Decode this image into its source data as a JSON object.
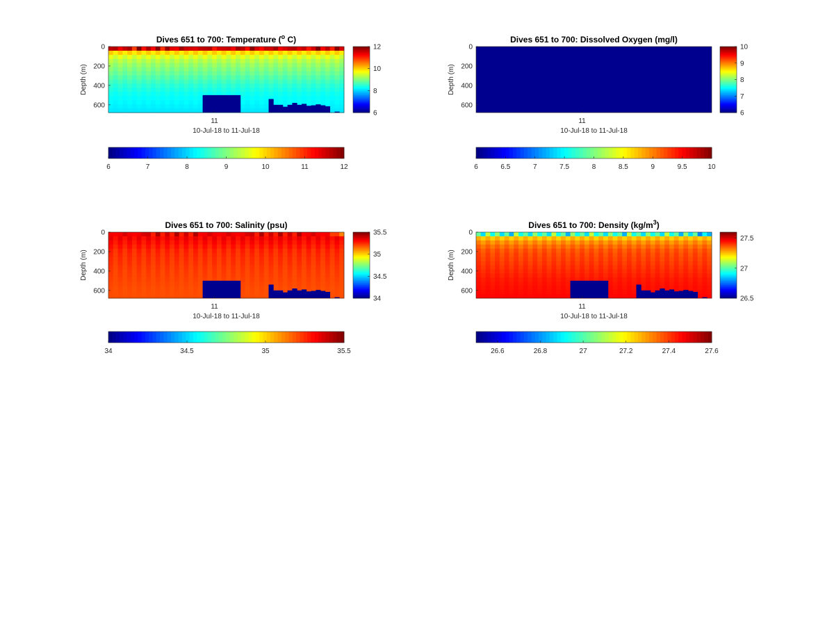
{
  "figure": {
    "background": "#ffffff"
  },
  "chart_data": [
    {
      "type": "heatmap",
      "variable": "temperature",
      "title": "Dives 651 to 700: Temperature (",
      "title_sup": "o",
      "title_suffix": " C)",
      "ylabel": "Depth (m)",
      "xlabel": "10-Jul-18 to 11-Jul-18",
      "xtick_labels": [
        "11"
      ],
      "yticks": [
        0,
        200,
        400,
        600
      ],
      "ylim": [
        0,
        680
      ],
      "y_direction": "down",
      "colormap": "jet",
      "clim": [
        6,
        12
      ],
      "side_colorbar_ticks": [
        6,
        8,
        10,
        12
      ],
      "bottom_colorbar_ticks": [
        6,
        7,
        8,
        9,
        10,
        11,
        12
      ],
      "dives": 50,
      "surface_values": [
        11.5,
        11.8,
        11.2,
        11.7,
        11.6,
        11.0,
        11.9,
        11.3,
        11.6,
        11.4,
        11.8,
        11.1,
        11.7,
        11.5,
        11.2,
        11.9,
        11.4,
        11.6,
        11.3,
        11.7,
        11.5,
        11.8,
        11.0,
        11.6,
        11.4,
        11.7,
        11.2,
        11.9,
        11.5,
        11.3,
        11.8,
        11.6,
        11.1,
        11.7,
        11.4,
        11.9,
        11.2,
        11.6,
        11.5,
        11.8,
        11.3,
        11.7,
        11.0,
        11.6,
        11.9,
        11.4,
        11.5,
        11.2,
        11.8,
        11.6
      ],
      "depth_profile": [
        [
          0,
          11.5
        ],
        [
          60,
          10.0
        ],
        [
          120,
          9.4
        ],
        [
          200,
          9.1
        ],
        [
          300,
          8.8
        ],
        [
          400,
          8.5
        ],
        [
          500,
          8.3
        ],
        [
          600,
          8.2
        ],
        [
          680,
          8.1
        ]
      ],
      "no_data": [
        {
          "x1": 0.4,
          "x2": 0.56,
          "depth": 500
        },
        {
          "x1": 0.68,
          "x2": 0.7,
          "depth": 540
        },
        {
          "x1": 0.7,
          "x2": 0.74,
          "depth": 600
        },
        {
          "x1": 0.74,
          "x2": 0.76,
          "depth": 620
        },
        {
          "x1": 0.76,
          "x2": 0.78,
          "depth": 600
        },
        {
          "x1": 0.78,
          "x2": 0.8,
          "depth": 580
        },
        {
          "x1": 0.8,
          "x2": 0.82,
          "depth": 600
        },
        {
          "x1": 0.82,
          "x2": 0.84,
          "depth": 590
        },
        {
          "x1": 0.84,
          "x2": 0.86,
          "depth": 610
        },
        {
          "x1": 0.86,
          "x2": 0.88,
          "depth": 605
        },
        {
          "x1": 0.88,
          "x2": 0.9,
          "depth": 595
        },
        {
          "x1": 0.9,
          "x2": 0.92,
          "depth": 605
        },
        {
          "x1": 0.92,
          "x2": 0.94,
          "depth": 615
        },
        {
          "x1": 0.96,
          "x2": 0.98,
          "depth": 670
        }
      ],
      "no_data_color": "#00008f"
    },
    {
      "type": "heatmap",
      "variable": "dissolved_oxygen",
      "title": "Dives 651 to 700: Dissolved Oxygen (mg/l)",
      "title_sup": "",
      "title_suffix": "",
      "ylabel": "Depth (m)",
      "xlabel": "10-Jul-18 to 11-Jul-18",
      "xtick_labels": [
        "11"
      ],
      "yticks": [
        0,
        200,
        400,
        600
      ],
      "ylim": [
        0,
        680
      ],
      "y_direction": "down",
      "colormap": "jet",
      "clim": [
        6,
        10
      ],
      "side_colorbar_ticks": [
        6,
        7,
        8,
        9,
        10
      ],
      "bottom_colorbar_ticks": [
        6,
        6.5,
        7,
        7.5,
        8,
        8.5,
        9,
        9.5,
        10
      ],
      "dives": 50,
      "uniform_fill": "#00008f",
      "no_data": []
    },
    {
      "type": "heatmap",
      "variable": "salinity",
      "title": "Dives 651 to 700: Salinity (psu)",
      "title_sup": "",
      "title_suffix": "",
      "ylabel": "Depth (m)",
      "xlabel": "10-Jul-18 to 11-Jul-18",
      "xtick_labels": [
        "11"
      ],
      "yticks": [
        0,
        200,
        400,
        600
      ],
      "ylim": [
        0,
        680
      ],
      "y_direction": "down",
      "colormap": "jet",
      "clim": [
        34,
        35.5
      ],
      "side_colorbar_ticks": [
        34,
        34.5,
        35,
        35.5
      ],
      "bottom_colorbar_ticks": [
        34,
        34.5,
        35,
        35.5
      ],
      "dives": 50,
      "surface_values": [
        35.3,
        35.35,
        35.3,
        35.4,
        35.3,
        35.35,
        35.3,
        35.4,
        35.35,
        35.3,
        35.4,
        35.3,
        35.35,
        35.3,
        35.4,
        35.3,
        35.35,
        35.3,
        35.4,
        35.35,
        35.3,
        35.4,
        35.3,
        35.35,
        35.3,
        35.4,
        35.3,
        35.35,
        35.3,
        35.4,
        35.35,
        35.3,
        35.4,
        35.3,
        35.35,
        35.3,
        35.4,
        35.3,
        35.35,
        35.3,
        35.4,
        35.35,
        35.3,
        35.4,
        35.3,
        35.35,
        35.3,
        35.25,
        35.2,
        35.15
      ],
      "depth_profile": [
        [
          0,
          35.35
        ],
        [
          100,
          35.3
        ],
        [
          200,
          35.25
        ],
        [
          400,
          35.22
        ],
        [
          600,
          35.2
        ],
        [
          680,
          35.2
        ]
      ],
      "no_data": [
        {
          "x1": 0.4,
          "x2": 0.56,
          "depth": 500
        },
        {
          "x1": 0.68,
          "x2": 0.7,
          "depth": 540
        },
        {
          "x1": 0.7,
          "x2": 0.74,
          "depth": 600
        },
        {
          "x1": 0.74,
          "x2": 0.76,
          "depth": 620
        },
        {
          "x1": 0.76,
          "x2": 0.78,
          "depth": 600
        },
        {
          "x1": 0.78,
          "x2": 0.8,
          "depth": 580
        },
        {
          "x1": 0.8,
          "x2": 0.82,
          "depth": 600
        },
        {
          "x1": 0.82,
          "x2": 0.84,
          "depth": 590
        },
        {
          "x1": 0.84,
          "x2": 0.86,
          "depth": 610
        },
        {
          "x1": 0.86,
          "x2": 0.88,
          "depth": 605
        },
        {
          "x1": 0.88,
          "x2": 0.9,
          "depth": 595
        },
        {
          "x1": 0.9,
          "x2": 0.92,
          "depth": 605
        },
        {
          "x1": 0.92,
          "x2": 0.94,
          "depth": 615
        },
        {
          "x1": 0.96,
          "x2": 0.98,
          "depth": 670
        }
      ],
      "no_data_color": "#00008f"
    },
    {
      "type": "heatmap",
      "variable": "density",
      "title": "Dives 651 to 700: Density (kg/m",
      "title_sup": "3",
      "title_suffix": ")",
      "ylabel": "Depth (m)",
      "xlabel": "10-Jul-18 to 11-Jul-18",
      "xtick_labels": [
        "11"
      ],
      "yticks": [
        0,
        200,
        400,
        600
      ],
      "ylim": [
        0,
        680
      ],
      "y_direction": "down",
      "colormap": "jet",
      "clim": [
        26.5,
        27.6
      ],
      "side_colorbar_ticks": [
        26.5,
        27,
        27.5
      ],
      "bottom_colorbar_ticks": [
        26.6,
        26.8,
        27,
        27.2,
        27.4,
        27.6
      ],
      "dives": 50,
      "surface_values": [
        27.0,
        26.9,
        27.1,
        26.95,
        27.05,
        26.9,
        27.0,
        26.85,
        27.1,
        26.95,
        27.0,
        26.9,
        27.05,
        26.95,
        27.0,
        26.9,
        27.1,
        26.95,
        27.0,
        26.85,
        27.05,
        26.95,
        27.0,
        26.9,
        27.1,
        26.95,
        27.0,
        26.9,
        27.05,
        26.95,
        27.0,
        26.85,
        27.1,
        26.95,
        27.0,
        26.9,
        27.05,
        26.95,
        27.0,
        26.9,
        27.1,
        26.95,
        27.0,
        26.85,
        27.05,
        26.9,
        27.0,
        26.8,
        26.9,
        26.85
      ],
      "depth_profile": [
        [
          0,
          26.95
        ],
        [
          60,
          27.25
        ],
        [
          120,
          27.33
        ],
        [
          200,
          27.38
        ],
        [
          300,
          27.4
        ],
        [
          400,
          27.42
        ],
        [
          500,
          27.44
        ],
        [
          600,
          27.45
        ],
        [
          680,
          27.46
        ]
      ],
      "no_data": [
        {
          "x1": 0.4,
          "x2": 0.56,
          "depth": 500
        },
        {
          "x1": 0.68,
          "x2": 0.7,
          "depth": 540
        },
        {
          "x1": 0.7,
          "x2": 0.74,
          "depth": 600
        },
        {
          "x1": 0.74,
          "x2": 0.76,
          "depth": 620
        },
        {
          "x1": 0.76,
          "x2": 0.78,
          "depth": 600
        },
        {
          "x1": 0.78,
          "x2": 0.8,
          "depth": 580
        },
        {
          "x1": 0.8,
          "x2": 0.82,
          "depth": 600
        },
        {
          "x1": 0.82,
          "x2": 0.84,
          "depth": 590
        },
        {
          "x1": 0.84,
          "x2": 0.86,
          "depth": 610
        },
        {
          "x1": 0.86,
          "x2": 0.88,
          "depth": 605
        },
        {
          "x1": 0.88,
          "x2": 0.9,
          "depth": 595
        },
        {
          "x1": 0.9,
          "x2": 0.92,
          "depth": 605
        },
        {
          "x1": 0.92,
          "x2": 0.94,
          "depth": 615
        },
        {
          "x1": 0.96,
          "x2": 0.98,
          "depth": 670
        }
      ],
      "no_data_color": "#00008f"
    }
  ]
}
